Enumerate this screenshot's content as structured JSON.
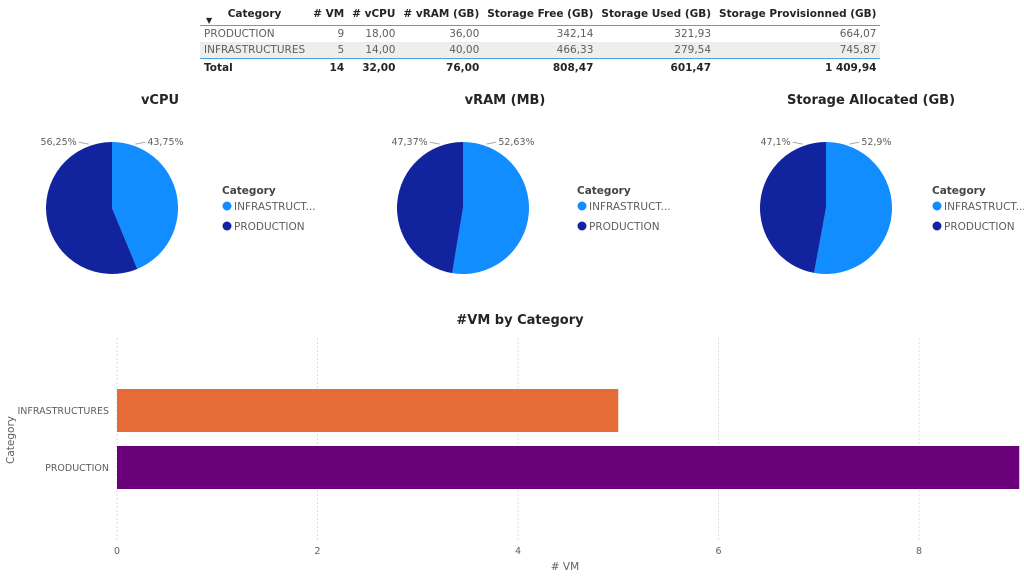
{
  "table": {
    "headers": [
      "Category",
      "# VM",
      "# vCPU",
      "# vRAM (GB)",
      "Storage Free (GB)",
      "Storage Used (GB)",
      "Storage Provisionned (GB)"
    ],
    "sort_icon": "sort-descending-icon",
    "rows": [
      [
        "PRODUCTION",
        "9",
        "18,00",
        "36,00",
        "342,14",
        "321,93",
        "664,07"
      ],
      [
        "INFRASTRUCTURES",
        "5",
        "14,00",
        "40,00",
        "466,33",
        "279,54",
        "745,87"
      ]
    ],
    "total": [
      "Total",
      "14",
      "32,00",
      "76,00",
      "808,47",
      "601,47",
      "1 409,94"
    ]
  },
  "colors": {
    "infra": "#118DFF",
    "production": "#12239E",
    "bar_infra": "#E66C37",
    "bar_production": "#6B007B"
  },
  "chart_data": [
    {
      "type": "pie",
      "title": "vCPU",
      "legend_title": "Category",
      "legend_placement": "right",
      "slices": [
        {
          "name": "INFRASTRUCTURES",
          "legend_label": "INFRASTRUCT...",
          "percent_label": "43,75%",
          "value": 43.75
        },
        {
          "name": "PRODUCTION",
          "legend_label": "PRODUCTION",
          "percent_label": "56,25%",
          "value": 56.25
        }
      ]
    },
    {
      "type": "pie",
      "title": "vRAM (MB)",
      "legend_title": "Category",
      "legend_placement": "right",
      "slices": [
        {
          "name": "INFRASTRUCTURES",
          "legend_label": "INFRASTRUCT...",
          "percent_label": "52,63%",
          "value": 52.63
        },
        {
          "name": "PRODUCTION",
          "legend_label": "PRODUCTION",
          "percent_label": "47,37%",
          "value": 47.37
        }
      ]
    },
    {
      "type": "pie",
      "title": "Storage Allocated (GB)",
      "legend_title": "Category",
      "legend_placement": "right",
      "slices": [
        {
          "name": "INFRASTRUCTURES",
          "legend_label": "INFRASTRUCT...",
          "percent_label": "52,9%",
          "value": 52.9
        },
        {
          "name": "PRODUCTION",
          "legend_label": "PRODUCTION",
          "percent_label": "47,1%",
          "value": 47.1
        }
      ]
    },
    {
      "type": "bar",
      "orientation": "horizontal",
      "title": "#VM by Category",
      "xlabel": "# VM",
      "ylabel": "Category",
      "categories": [
        "INFRASTRUCTURES",
        "PRODUCTION"
      ],
      "values": [
        5,
        9
      ],
      "xlim": [
        0,
        9
      ],
      "xticks": [
        0,
        2,
        4,
        6,
        8
      ],
      "grid": true
    }
  ]
}
